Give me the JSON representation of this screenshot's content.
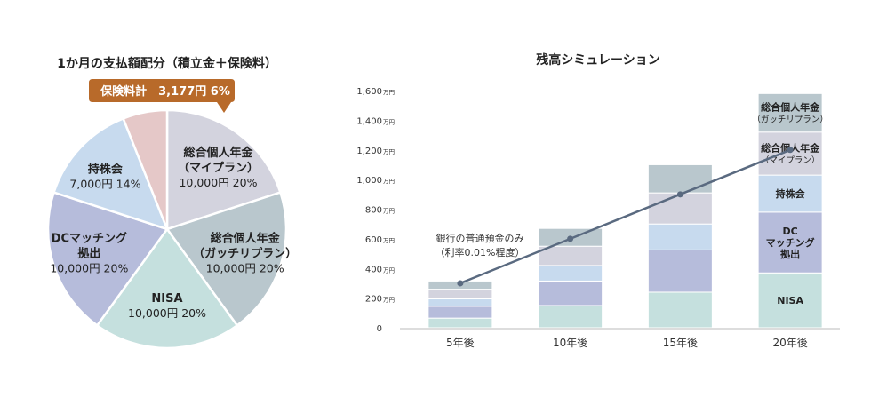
{
  "chart_data": [
    {
      "type": "pie",
      "title": "1か月の支払額配分（積立金＋保険料）",
      "start_angle_deg": 0,
      "slices": [
        {
          "name": "総合個人年金\n（マイプラン）",
          "amount": "10,000円",
          "percent": "20%",
          "value": 20,
          "color": "#d3d3de"
        },
        {
          "name": "総合個人年金\n（ガッチリプラン）",
          "amount": "10,000円",
          "percent": "20%",
          "value": 20,
          "color": "#b9c7cd"
        },
        {
          "name": "NISA",
          "amount": "10,000円",
          "percent": "20%",
          "value": 20,
          "color": "#c5e0de"
        },
        {
          "name": "DCマッチング\n拠出",
          "amount": "10,000円",
          "percent": "20%",
          "value": 20,
          "color": "#b6bcdb"
        },
        {
          "name": "持株会",
          "amount": "7,000円",
          "percent": "14%",
          "value": 14,
          "color": "#c7daee"
        },
        {
          "name": "保険料計",
          "amount": "3,177円",
          "percent": "6%",
          "value": 6,
          "color": "#e5c8c8"
        }
      ],
      "callout": {
        "text": "保険料計　3,177円 6%",
        "color": "#b86a2a"
      }
    },
    {
      "type": "bar",
      "stacked": true,
      "title": "残高シミュレーション",
      "categories": [
        "5年後",
        "10年後",
        "15年後",
        "20年後"
      ],
      "ylim": [
        0,
        1600
      ],
      "yticks": [
        {
          "value": 0,
          "label": "0",
          "unit": ""
        },
        {
          "value": 200,
          "label": "200",
          "unit": "万円"
        },
        {
          "value": 400,
          "label": "400",
          "unit": "万円"
        },
        {
          "value": 600,
          "label": "600",
          "unit": "万円"
        },
        {
          "value": 800,
          "label": "800",
          "unit": "万円"
        },
        {
          "value": 1000,
          "label": "1,000",
          "unit": "万円"
        },
        {
          "value": 1200,
          "label": "1,200",
          "unit": "万円"
        },
        {
          "value": 1400,
          "label": "1,400",
          "unit": "万円"
        },
        {
          "value": 1600,
          "label": "1,600",
          "unit": "万円"
        }
      ],
      "series": [
        {
          "name": "NISA",
          "color": "#c5e0de",
          "values": [
            65,
            150,
            240,
            370
          ]
        },
        {
          "name": "DCマッチング拠出",
          "color": "#b6bcdb",
          "values": [
            80,
            165,
            285,
            410
          ]
        },
        {
          "name": "持株会",
          "color": "#c7daee",
          "values": [
            50,
            105,
            175,
            250
          ]
        },
        {
          "name": "総合個人年金（マイプラン）",
          "color": "#d3d3de",
          "values": [
            65,
            130,
            210,
            290
          ]
        },
        {
          "name": "総合個人年金（ガッチリプラン）",
          "color": "#b9c7cd",
          "values": [
            55,
            120,
            190,
            260
          ]
        }
      ],
      "segment_labels_last_bar": [
        {
          "series": 0,
          "lines": [
            "NISA"
          ]
        },
        {
          "series": 1,
          "lines": [
            "DC",
            "マッチング",
            "拠出"
          ]
        },
        {
          "series": 2,
          "lines": [
            "持株会"
          ]
        },
        {
          "series": 3,
          "lines": [
            "総合個人年金",
            "（マイプラン）"
          ]
        },
        {
          "series": 4,
          "lines": [
            "総合個人年金",
            "（ガッチリプラン）"
          ]
        }
      ],
      "line": {
        "name": "銀行の普通預金のみ",
        "values": [
          300,
          600,
          900,
          1200
        ],
        "color": "#5a6a80",
        "annotation": [
          "銀行の普通預金のみ",
          "（利率0.01%程度）"
        ]
      }
    }
  ]
}
